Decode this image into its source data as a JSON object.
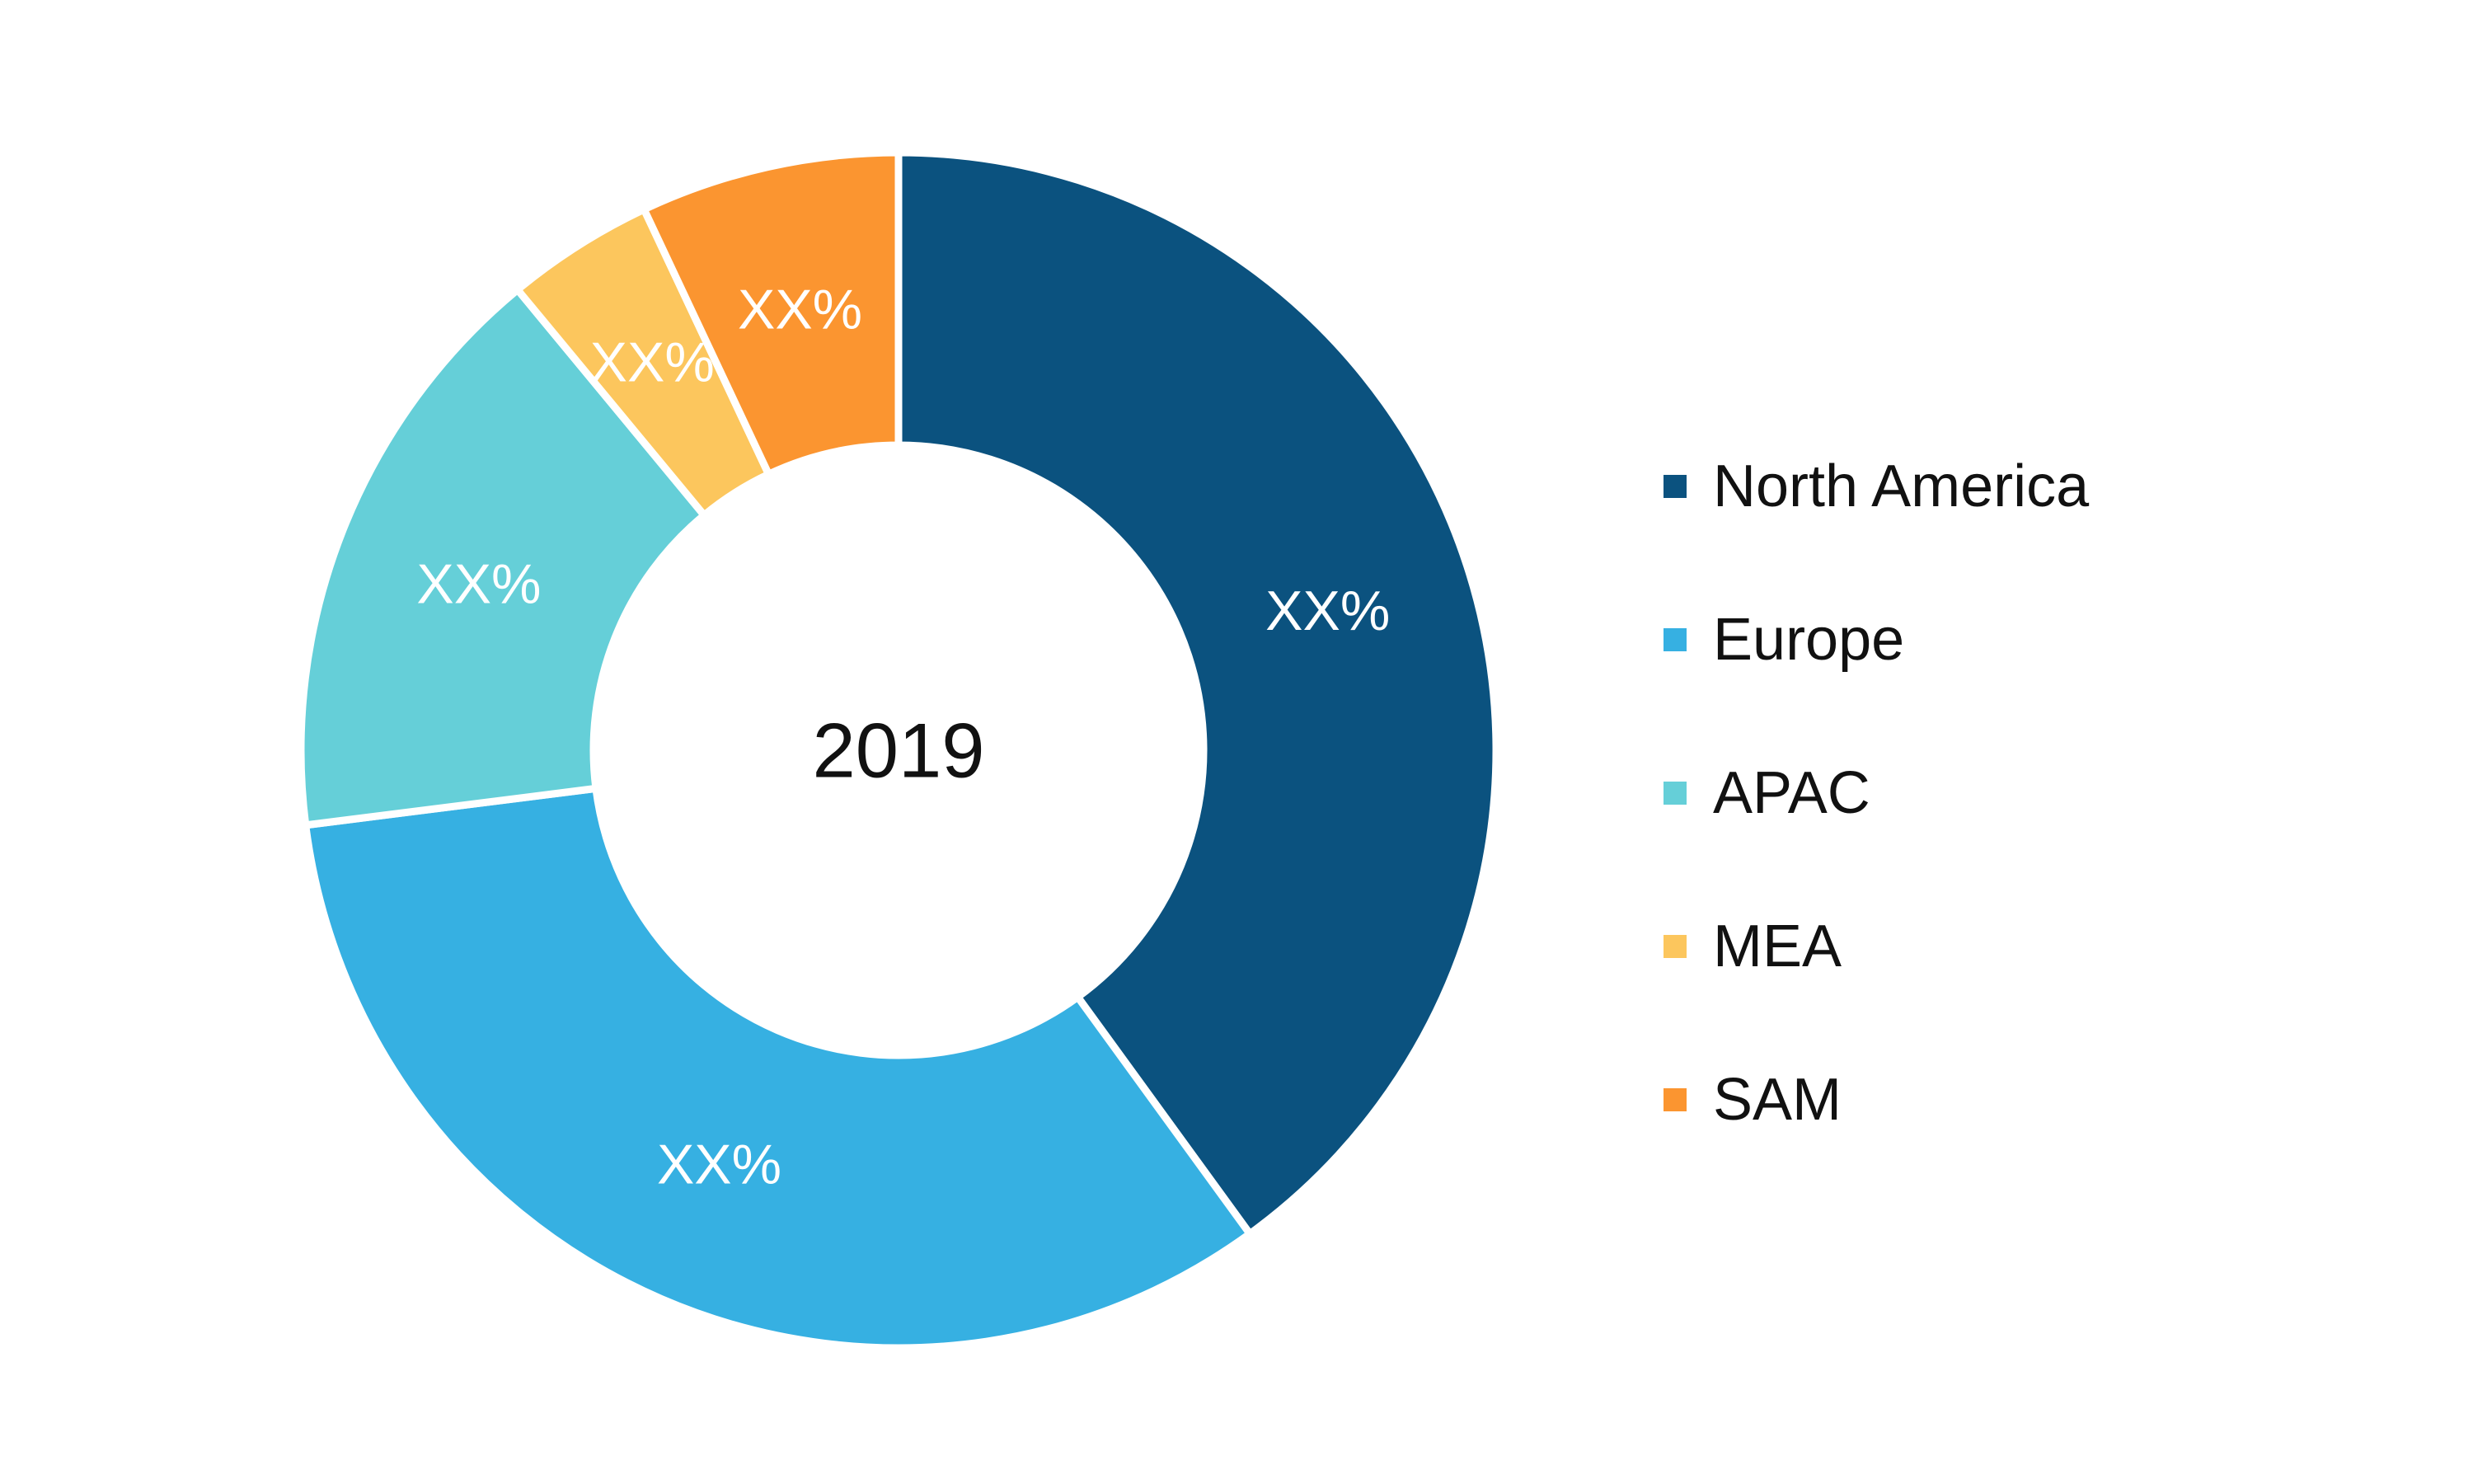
{
  "chart_data": {
    "type": "donut",
    "center_label": "2019",
    "categories": [
      "North America",
      "Europe",
      "APAC",
      "MEA",
      "SAM"
    ],
    "values": [
      40,
      33,
      16,
      4,
      7
    ],
    "value_labels": [
      "XX%",
      "XX%",
      "XX%",
      "XX%",
      "XX%"
    ],
    "colors": [
      "#0B527F",
      "#36B0E2",
      "#65CFD8",
      "#FCC65D",
      "#FB9530"
    ],
    "start_angle_deg": 0,
    "direction": "clockwise",
    "legend": {
      "position": "right",
      "entries": [
        {
          "label": "North America",
          "color": "#0B527F"
        },
        {
          "label": "Europe",
          "color": "#36B0E2"
        },
        {
          "label": "APAC",
          "color": "#65CFD8"
        },
        {
          "label": "MEA",
          "color": "#FCC65D"
        },
        {
          "label": "SAM",
          "color": "#FB9530"
        }
      ]
    },
    "title": "",
    "xlabel": "",
    "ylabel": ""
  }
}
